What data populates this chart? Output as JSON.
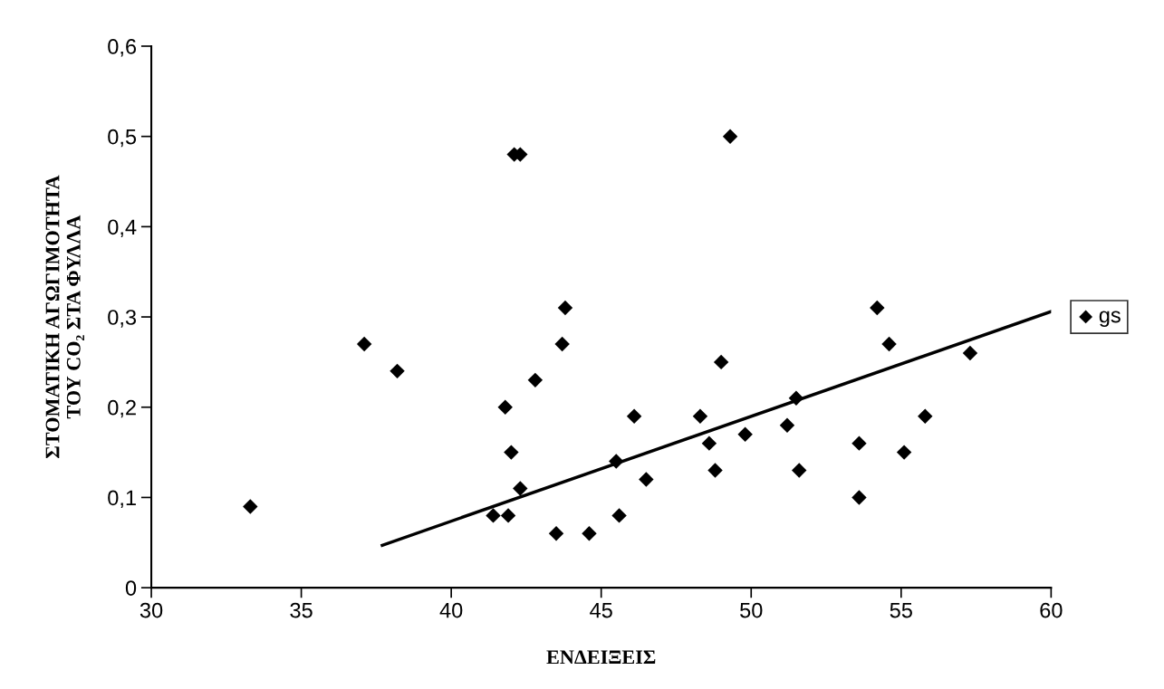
{
  "chart_data": {
    "type": "scatter",
    "xlabel": "ΕΝΔΕΙΞΕΙΣ",
    "ylabel": "ΣΤΟΜΑΤΙΚΗ ΑΓΩΓΙΜΟΤΗΤΑ\nΤΟΥ CO₂ ΣΤΑ ΦΥΛΛΑ",
    "xlim": [
      30,
      60
    ],
    "xticks": [
      30,
      35,
      40,
      45,
      50,
      55,
      60
    ],
    "ylim": [
      0,
      0.6
    ],
    "yticks": [
      0,
      {
        "value": 0.1,
        "label": "0,1"
      },
      {
        "value": 0.2,
        "label": "0,2"
      },
      {
        "value": 0.3,
        "label": "0,3"
      },
      {
        "value": 0.4,
        "label": "0,4"
      },
      {
        "value": 0.5,
        "label": "0,5"
      },
      {
        "value": 0.6,
        "label": "0,6"
      }
    ],
    "grid": false,
    "legend": "right",
    "marker": "diamond",
    "series": [
      {
        "name": "gs",
        "color": "#000000",
        "x": [
          33.3,
          37.1,
          38.2,
          42.1,
          42.3,
          43.8,
          43.7,
          42.8,
          41.8,
          42.0,
          42.3,
          41.4,
          41.9,
          43.5,
          44.6,
          45.6,
          45.5,
          46.1,
          46.5,
          49.3,
          49.0,
          48.3,
          48.6,
          48.8,
          49.8,
          51.2,
          51.5,
          51.6,
          53.6,
          53.6,
          54.2,
          54.6,
          55.1,
          55.8,
          57.3
        ],
        "values": [
          0.09,
          0.27,
          0.24,
          0.48,
          0.48,
          0.31,
          0.27,
          0.23,
          0.2,
          0.15,
          0.11,
          0.08,
          0.08,
          0.06,
          0.06,
          0.08,
          0.14,
          0.19,
          0.12,
          0.5,
          0.25,
          0.19,
          0.16,
          0.13,
          0.17,
          0.18,
          0.21,
          0.13,
          0.16,
          0.1,
          0.31,
          0.27,
          0.15,
          0.19,
          0.26
        ]
      },
      {
        "type": "line",
        "color": "#000000",
        "line_style": "solid",
        "marker": "none",
        "x": [
          37.7,
          60
        ],
        "values": [
          0.047,
          0.306
        ]
      }
    ]
  }
}
